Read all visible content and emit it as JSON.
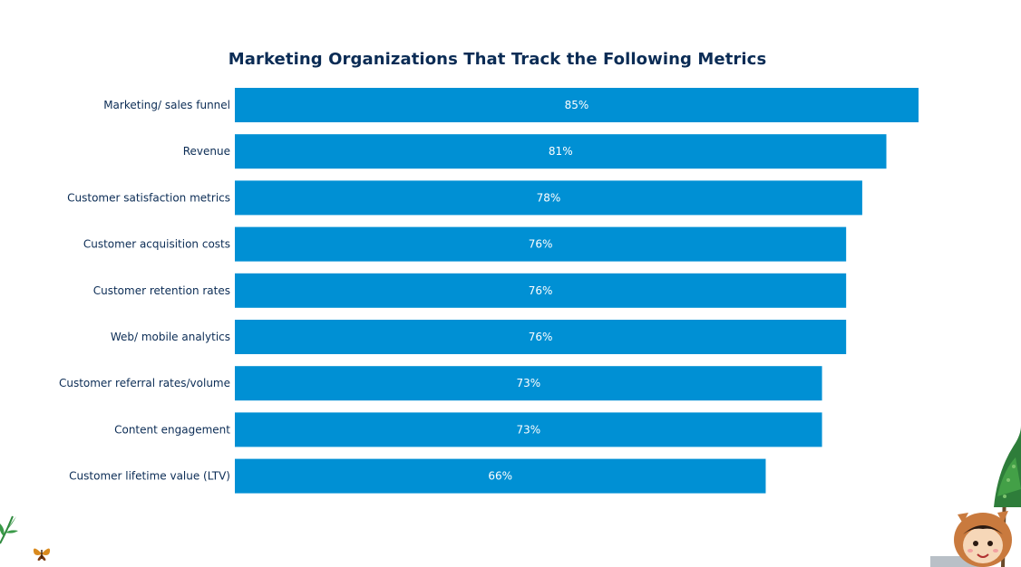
{
  "chart_data": {
    "type": "bar",
    "orientation": "horizontal",
    "title": "Marketing Organizations That Track the Following Metrics",
    "categories": [
      "Marketing/ sales funnel",
      "Revenue",
      "Customer satisfaction metrics",
      "Customer acquisition costs",
      "Customer retention rates",
      "Web/ mobile analytics",
      "Customer referral rates/volume",
      "Content engagement",
      "Customer lifetime value (LTV)"
    ],
    "values": [
      85,
      81,
      78,
      76,
      76,
      76,
      73,
      73,
      66
    ],
    "value_labels": [
      "85%",
      "81%",
      "78%",
      "76%",
      "76%",
      "76%",
      "73%",
      "73%",
      "66%"
    ],
    "unit": "%",
    "xlim": [
      0,
      85
    ],
    "grid": false,
    "legend": "none",
    "bar_color": "#0090d4",
    "label_color": "#0b2c55"
  },
  "decorations": {
    "left_plant": "fern-leaf-icon",
    "butterfly": "butterfly-icon",
    "right_plant": "tree-icon",
    "mascot": "mascot-character"
  }
}
